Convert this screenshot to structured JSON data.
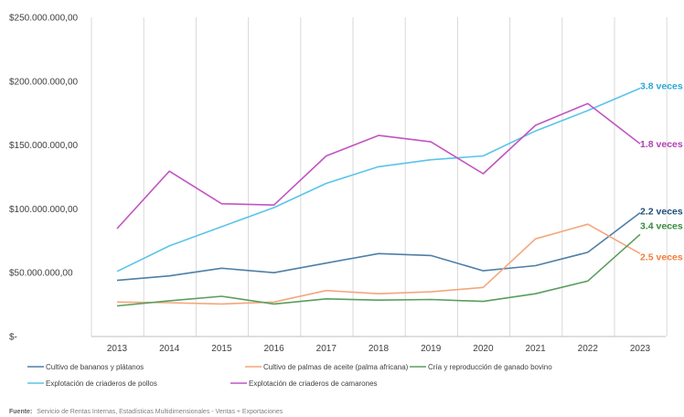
{
  "chart_data": {
    "type": "line",
    "x": [
      "2013",
      "2014",
      "2015",
      "2016",
      "2017",
      "2018",
      "2019",
      "2020",
      "2021",
      "2022",
      "2023"
    ],
    "ylim": [
      0,
      250000000
    ],
    "yticks": [
      {
        "value": 0,
        "label": "$-"
      },
      {
        "value": 50000000,
        "label": "$50.000.000,00"
      },
      {
        "value": 100000000,
        "label": "$100.000.000,00"
      },
      {
        "value": 150000000,
        "label": "$150.000.000,00"
      },
      {
        "value": 200000000,
        "label": "$200.000.000,00"
      },
      {
        "value": 250000000,
        "label": "$250.000.000,00"
      }
    ],
    "grid": {
      "vertical": true,
      "horizontal": false
    },
    "legend_position": "bottom",
    "series": [
      {
        "name": "Cultivo de bananos y plátanos",
        "color": "#4f7fa6",
        "values": [
          44000000,
          47500000,
          53500000,
          50000000,
          57500000,
          65000000,
          63500000,
          51500000,
          55500000,
          66000000,
          97000000
        ],
        "annotation": "2.2 veces"
      },
      {
        "name": "Cultivo de palmas de aceite (palma africana)",
        "color": "#f4a67c",
        "values": [
          27000000,
          26500000,
          25500000,
          27000000,
          36000000,
          33500000,
          35000000,
          38500000,
          76500000,
          88000000,
          65000000
        ],
        "annotation": "2.5 veces"
      },
      {
        "name": "Cría y reproducción de ganado bovino",
        "color": "#5a9e5e",
        "values": [
          24000000,
          28000000,
          31500000,
          25500000,
          29500000,
          28500000,
          29000000,
          27500000,
          33500000,
          43500000,
          80000000
        ],
        "annotation": "3.4 veces"
      },
      {
        "name": "Explotación de criaderos de pollos",
        "color": "#5cc3ea",
        "values": [
          51000000,
          71000000,
          86000000,
          101000000,
          120000000,
          133000000,
          138500000,
          141500000,
          161000000,
          177000000,
          194500000
        ],
        "annotation": "3.8 veces"
      },
      {
        "name": "Explotación de criaderos de camarones",
        "color": "#c155c2",
        "values": [
          84500000,
          129500000,
          104000000,
          103000000,
          141500000,
          157500000,
          152500000,
          127500000,
          165500000,
          182500000,
          151000000
        ],
        "annotation": "1.8 veces"
      }
    ],
    "annotation_colors": {
      "2.2 veces": "#1f4e79",
      "2.5 veces": "#f47c3c",
      "3.4 veces": "#3a8a3c",
      "3.8 veces": "#2aa8d8",
      "1.8 veces": "#b33eb5"
    }
  },
  "source": {
    "prefix": "Fuente:",
    "text": "Servicio de Rentas Internas, Estadísticas Multidimensionales - Ventas + Exportaciones"
  }
}
